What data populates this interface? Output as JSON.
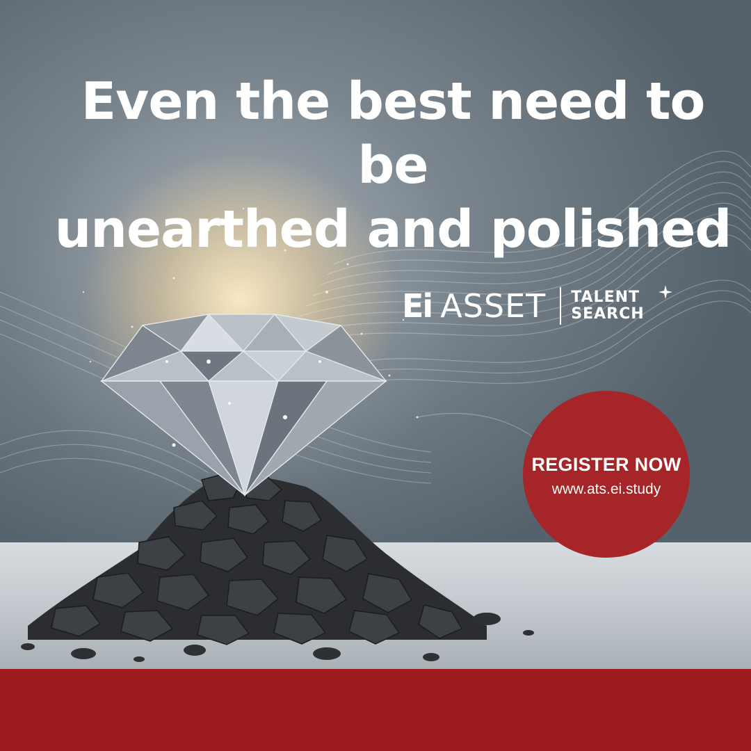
{
  "headline": {
    "line1": "Even the best need to be",
    "line2": "unearthed and polished"
  },
  "logo": {
    "ei": "Ei",
    "asset": "ASSET",
    "talent": "TALENT",
    "search": "SEARCH",
    "sparkle_icon": "four-point-star-icon"
  },
  "cta": {
    "title": "REGISTER NOW",
    "url": "www.ats.ei.study",
    "color": "#a52528"
  },
  "footer": {
    "color": "#9e1c20"
  },
  "illustration": {
    "subject": "diamond-on-coal-pile-icon"
  }
}
